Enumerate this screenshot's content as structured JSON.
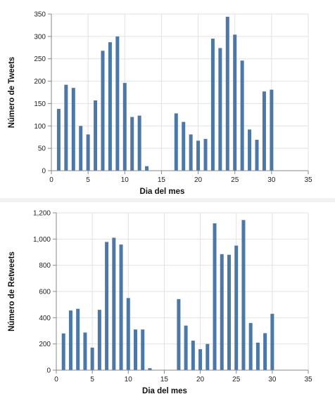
{
  "chart_data": [
    {
      "type": "bar",
      "xlabel": "Dia del mes",
      "ylabel": "Número de Tweets",
      "xlim": [
        0,
        35
      ],
      "ylim": [
        0,
        350
      ],
      "xticks": [
        "0",
        "5",
        "10",
        "15",
        "20",
        "25",
        "30",
        "35"
      ],
      "yticks": [
        "0",
        "50",
        "100",
        "150",
        "200",
        "250",
        "300",
        "350"
      ],
      "grid": true,
      "bar_color": "#4c78a8",
      "x": [
        1,
        2,
        3,
        4,
        5,
        6,
        7,
        8,
        9,
        10,
        11,
        12,
        13,
        17,
        18,
        19,
        20,
        21,
        22,
        23,
        24,
        25,
        26,
        27,
        28,
        29,
        30
      ],
      "values": [
        138,
        192,
        185,
        100,
        81,
        157,
        268,
        287,
        300,
        196,
        120,
        123,
        10,
        128,
        109,
        81,
        67,
        71,
        295,
        274,
        344,
        304,
        246,
        92,
        69,
        177,
        181
      ]
    },
    {
      "type": "bar",
      "xlabel": "Dia del mes",
      "ylabel": "Número de Retweets",
      "xlim": [
        0,
        35
      ],
      "ylim": [
        0,
        1200
      ],
      "xticks": [
        "0",
        "5",
        "10",
        "15",
        "20",
        "25",
        "30",
        "35"
      ],
      "yticks": [
        "0",
        "200",
        "400",
        "600",
        "800",
        "1,000",
        "1,200"
      ],
      "grid": true,
      "bar_color": "#4c78a8",
      "x": [
        1,
        2,
        3,
        4,
        5,
        6,
        7,
        8,
        9,
        10,
        11,
        12,
        13,
        17,
        18,
        19,
        20,
        21,
        22,
        23,
        24,
        25,
        26,
        27,
        28,
        29,
        30
      ],
      "values": [
        280,
        455,
        468,
        287,
        172,
        460,
        978,
        1010,
        958,
        550,
        310,
        310,
        15,
        542,
        340,
        225,
        160,
        200,
        1120,
        885,
        880,
        950,
        1145,
        360,
        210,
        282,
        430
      ]
    }
  ]
}
